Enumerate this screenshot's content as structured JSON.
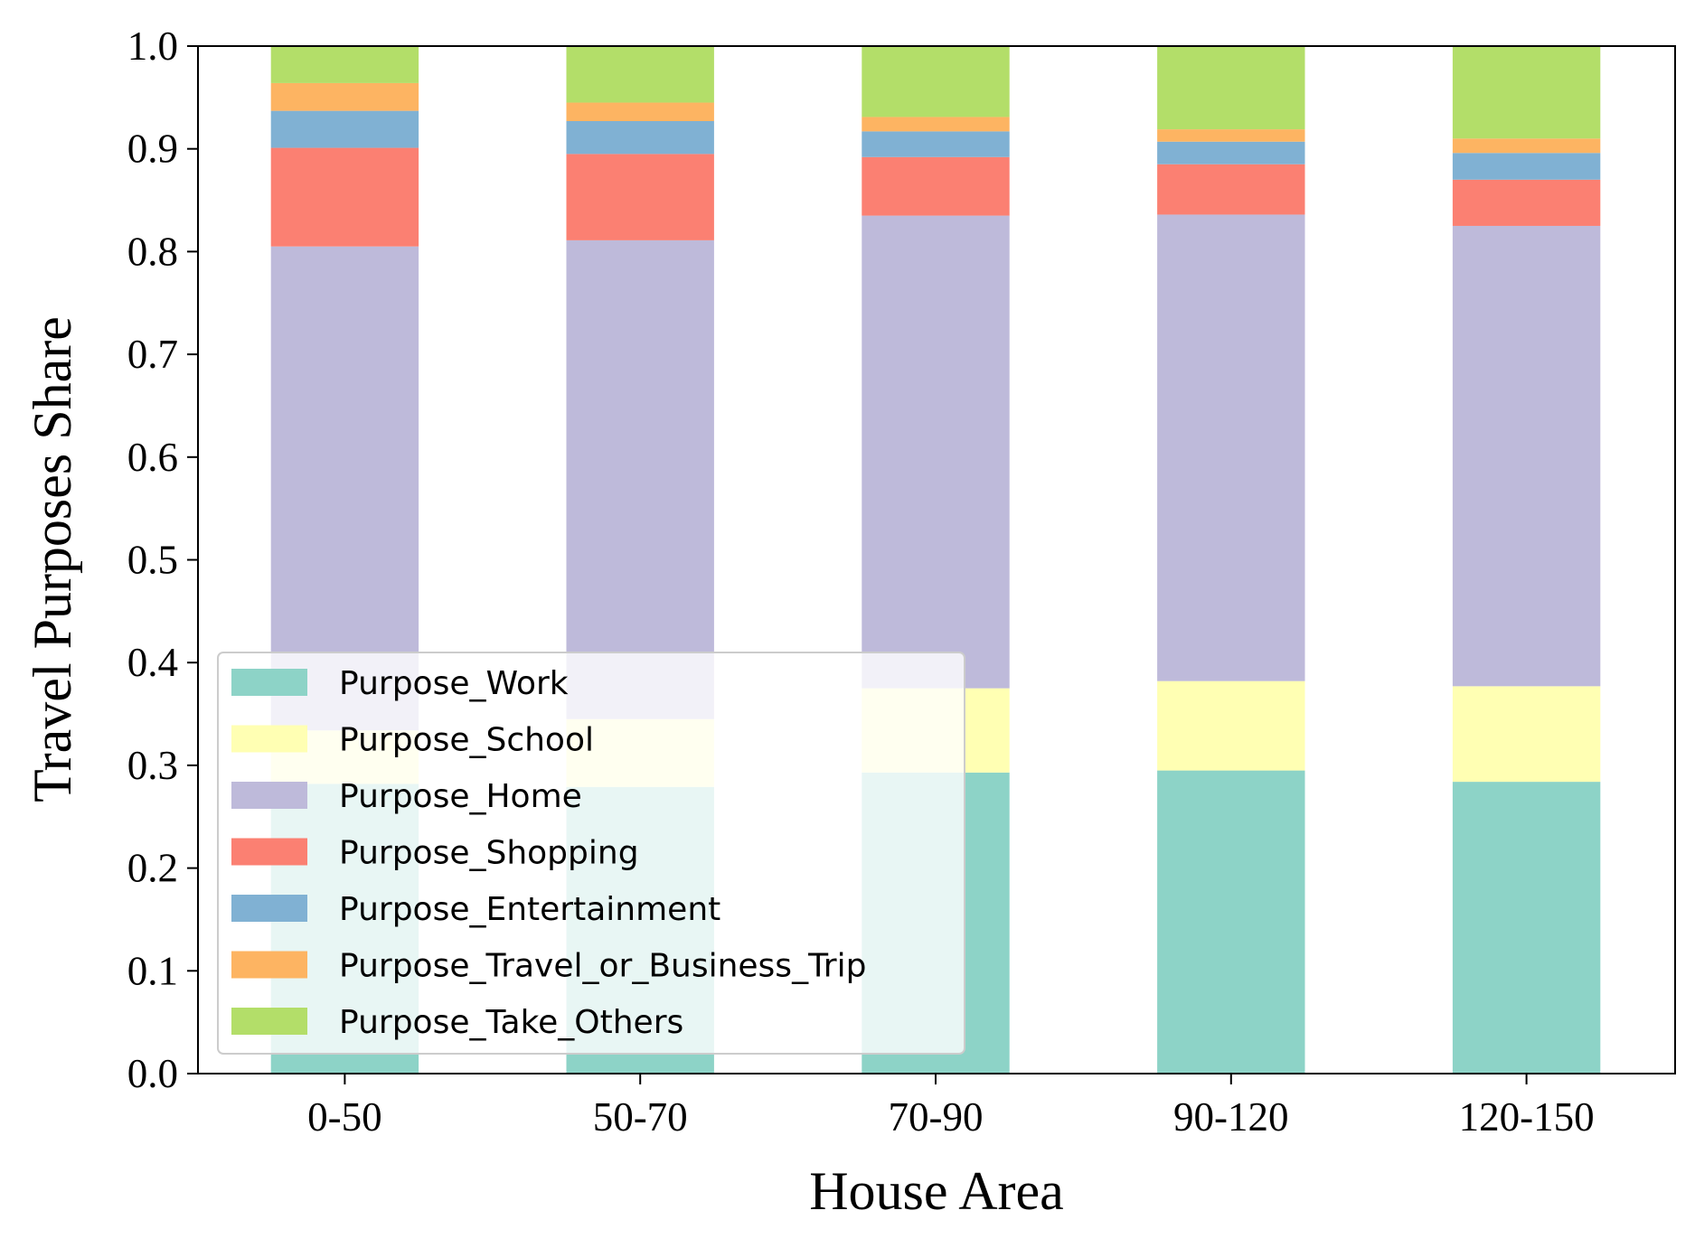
{
  "chart_data": {
    "type": "bar",
    "stacked": true,
    "xlabel": "House Area",
    "ylabel": "Travel Purposes Share",
    "ylim": [
      0.0,
      1.0
    ],
    "yticks": [
      "0.0",
      "0.1",
      "0.2",
      "0.3",
      "0.4",
      "0.5",
      "0.6",
      "0.7",
      "0.8",
      "0.9",
      "1.0"
    ],
    "categories": [
      "0-50",
      "50-70",
      "70-90",
      "90-120",
      "120-150"
    ],
    "legend_position": "lower-left",
    "grid": false,
    "series": [
      {
        "name": "Purpose_Work",
        "color": "#8dd3c7",
        "values": [
          0.282,
          0.279,
          0.293,
          0.295,
          0.284
        ]
      },
      {
        "name": "Purpose_School",
        "color": "#ffffb3",
        "values": [
          0.052,
          0.066,
          0.082,
          0.087,
          0.093
        ]
      },
      {
        "name": "Purpose_Home",
        "color": "#bebada",
        "values": [
          0.471,
          0.466,
          0.46,
          0.454,
          0.448
        ]
      },
      {
        "name": "Purpose_Shopping",
        "color": "#fb8072",
        "values": [
          0.096,
          0.084,
          0.057,
          0.049,
          0.045
        ]
      },
      {
        "name": "Purpose_Entertainment",
        "color": "#80b1d3",
        "values": [
          0.036,
          0.032,
          0.025,
          0.022,
          0.026
        ]
      },
      {
        "name": "Purpose_Travel_or_Business_Trip",
        "color": "#fdb462",
        "values": [
          0.027,
          0.018,
          0.014,
          0.012,
          0.014
        ]
      },
      {
        "name": "Purpose_Take_Others",
        "color": "#b3de69",
        "values": [
          0.036,
          0.055,
          0.069,
          0.081,
          0.09
        ]
      }
    ]
  }
}
